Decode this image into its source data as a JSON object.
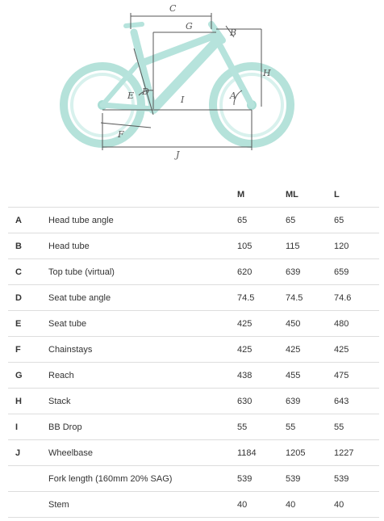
{
  "diagram": {
    "labels": {
      "A": "A",
      "B": "B",
      "C": "C",
      "D": "D",
      "E": "E",
      "F": "F",
      "G": "G",
      "H": "H",
      "I": "I",
      "J": "J"
    },
    "colors": {
      "wheel": "#a8ddd4",
      "frame": "#b6e3dc",
      "line": "#555555"
    }
  },
  "table": {
    "headers": {
      "letter": "",
      "label": "",
      "m": "M",
      "ml": "ML",
      "l": "L"
    },
    "rows": [
      {
        "letter": "A",
        "label": "Head tube angle",
        "m": "65",
        "ml": "65",
        "l": "65"
      },
      {
        "letter": "B",
        "label": "Head tube",
        "m": "105",
        "ml": "115",
        "l": "120"
      },
      {
        "letter": "C",
        "label": "Top tube (virtual)",
        "m": "620",
        "ml": "639",
        "l": "659"
      },
      {
        "letter": "D",
        "label": "Seat tube angle",
        "m": "74.5",
        "ml": "74.5",
        "l": "74.6"
      },
      {
        "letter": "E",
        "label": "Seat tube",
        "m": "425",
        "ml": "450",
        "l": "480"
      },
      {
        "letter": "F",
        "label": "Chainstays",
        "m": "425",
        "ml": "425",
        "l": "425"
      },
      {
        "letter": "G",
        "label": "Reach",
        "m": "438",
        "ml": "455",
        "l": "475"
      },
      {
        "letter": "H",
        "label": "Stack",
        "m": "630",
        "ml": "639",
        "l": "643"
      },
      {
        "letter": "I",
        "label": "BB Drop",
        "m": "55",
        "ml": "55",
        "l": "55"
      },
      {
        "letter": "J",
        "label": "Wheelbase",
        "m": "1184",
        "ml": "1205",
        "l": "1227"
      },
      {
        "letter": "",
        "label": "Fork length (160mm 20% SAG)",
        "m": "539",
        "ml": "539",
        "l": "539"
      },
      {
        "letter": "",
        "label": "Stem",
        "m": "40",
        "ml": "40",
        "l": "40"
      }
    ]
  }
}
